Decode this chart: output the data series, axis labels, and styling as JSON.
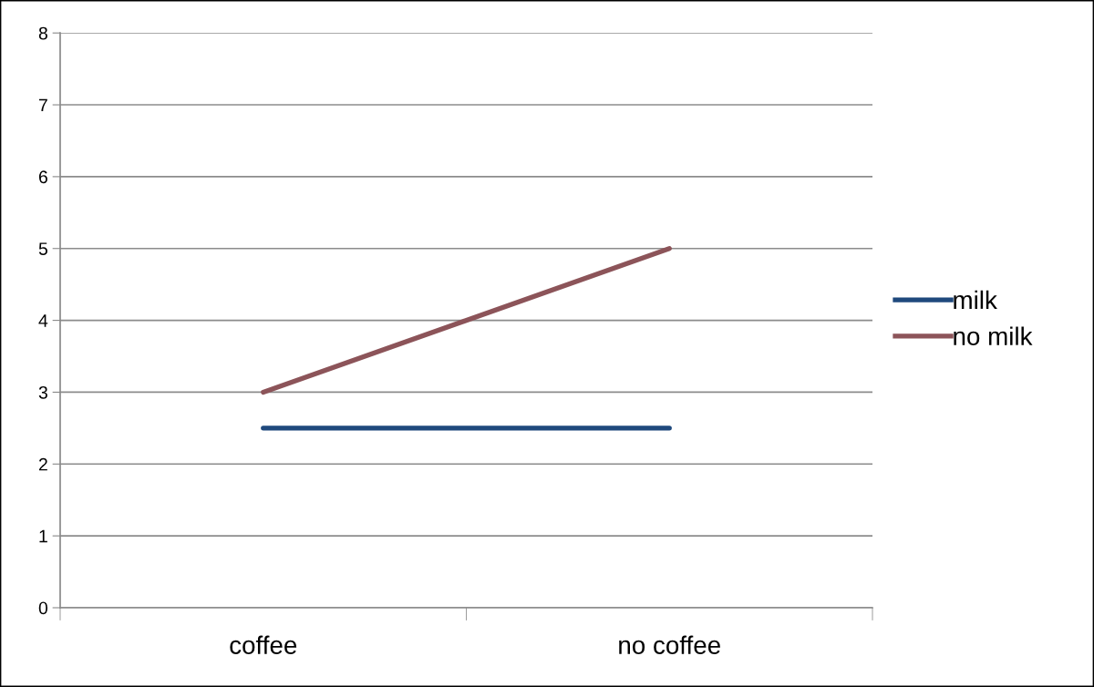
{
  "chart_data": {
    "type": "line",
    "categories": [
      "coffee",
      "no coffee"
    ],
    "series": [
      {
        "name": "milk",
        "color": "#1f497d",
        "values": [
          2.5,
          2.5
        ]
      },
      {
        "name": "no milk",
        "color": "#8c5459",
        "values": [
          3,
          5
        ]
      }
    ],
    "ylim": [
      0,
      8
    ],
    "yticks": [
      0,
      1,
      2,
      3,
      4,
      5,
      6,
      7,
      8
    ],
    "grid": "y",
    "legend": "right",
    "marker": "none",
    "line_style": "solid"
  }
}
